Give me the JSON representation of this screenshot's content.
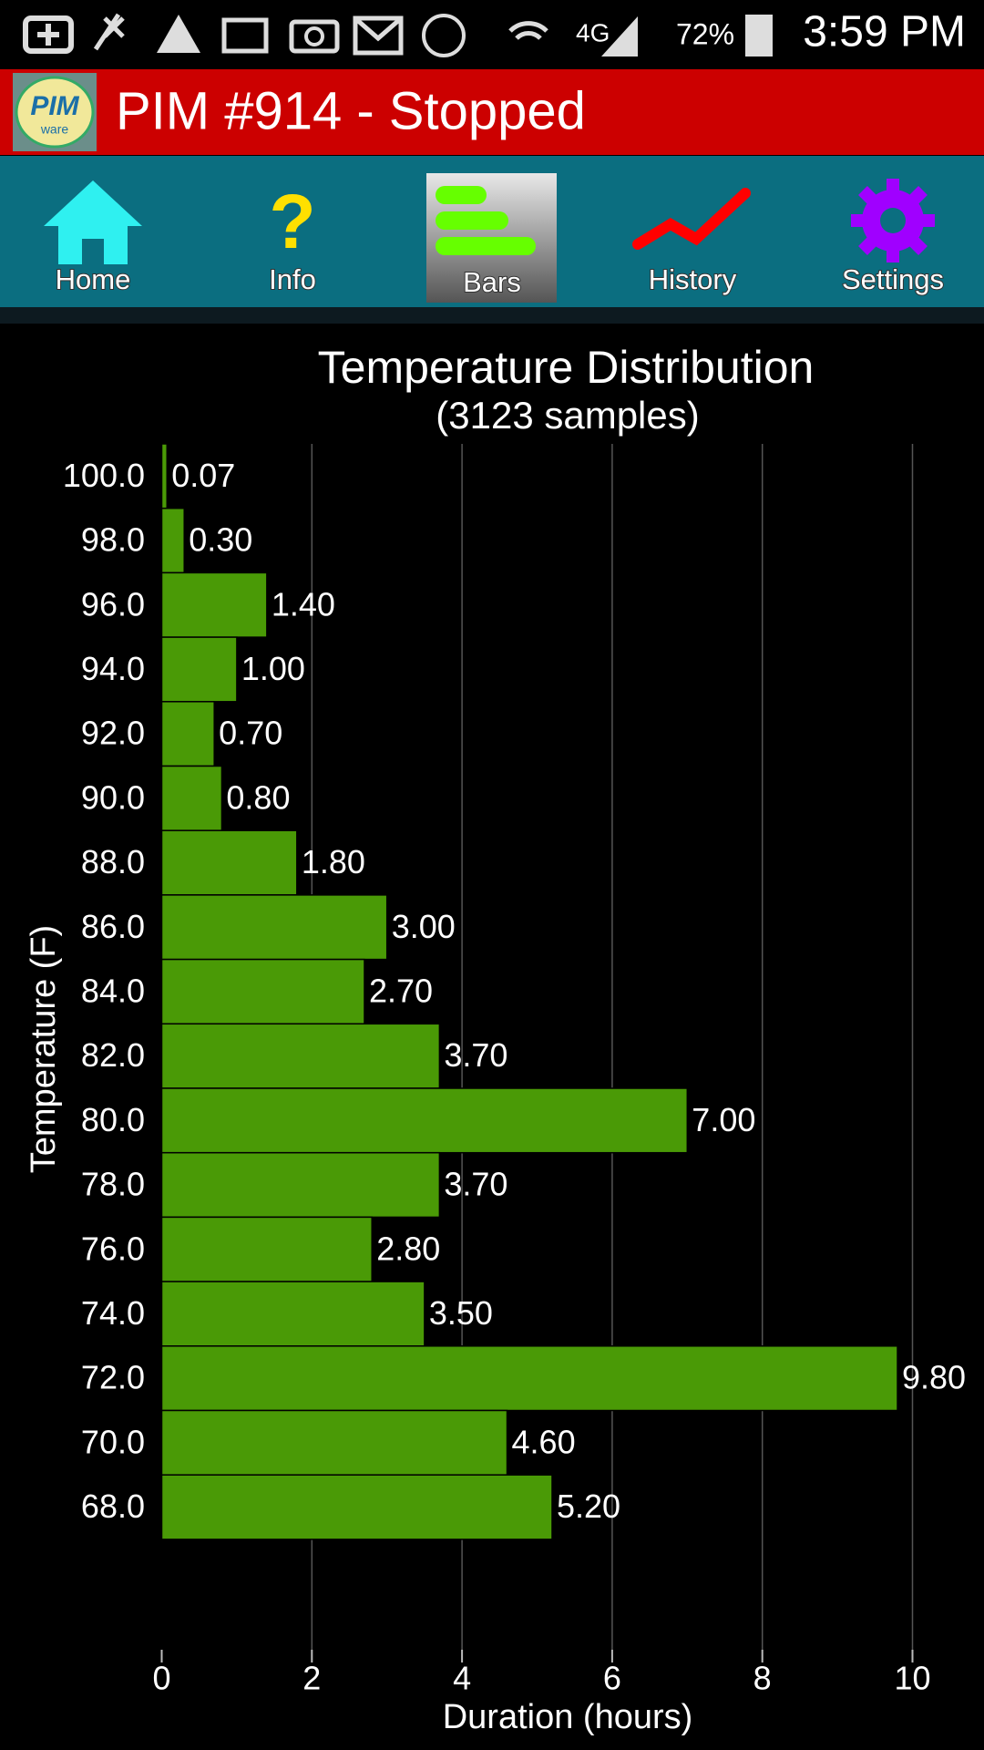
{
  "status_bar": {
    "network": "4G",
    "battery": "72%",
    "time": "3:59 PM"
  },
  "header": {
    "logo_text": "PIM",
    "logo_sub": "ware",
    "title": "PIM #914 - Stopped"
  },
  "nav": {
    "items": [
      "Home",
      "Info",
      "Bars",
      "History",
      "Settings"
    ],
    "selected": "Bars"
  },
  "chart_data": {
    "type": "barh",
    "title": "Temperature Distribution",
    "subtitle": "(3123 samples)",
    "xlabel": "Duration (hours)",
    "ylabel": "Temperature (F)",
    "categories": [
      "100.0",
      "98.0",
      "96.0",
      "94.0",
      "92.0",
      "90.0",
      "88.0",
      "86.0",
      "84.0",
      "82.0",
      "80.0",
      "78.0",
      "76.0",
      "74.0",
      "72.0",
      "70.0",
      "68.0"
    ],
    "values": [
      0.07,
      0.3,
      1.4,
      1,
      0.7,
      0.8,
      1.8,
      3,
      2.7,
      3.7,
      7,
      3.7,
      2.8,
      3.5,
      9.8,
      4.6,
      5.2
    ],
    "value_labels": [
      "0.07",
      "0.30",
      "1.40",
      "1.00",
      "0.70",
      "0.80",
      "1.80",
      "3.00",
      "2.70",
      "3.70",
      "7.00",
      "3.70",
      "2.80",
      "3.50",
      "9.80",
      "4.60",
      "5.20"
    ],
    "color": "#4a9a06",
    "xlim": [
      0,
      10.4
    ],
    "xticks": [
      0,
      2,
      4,
      6,
      8,
      10
    ],
    "grid": true
  }
}
